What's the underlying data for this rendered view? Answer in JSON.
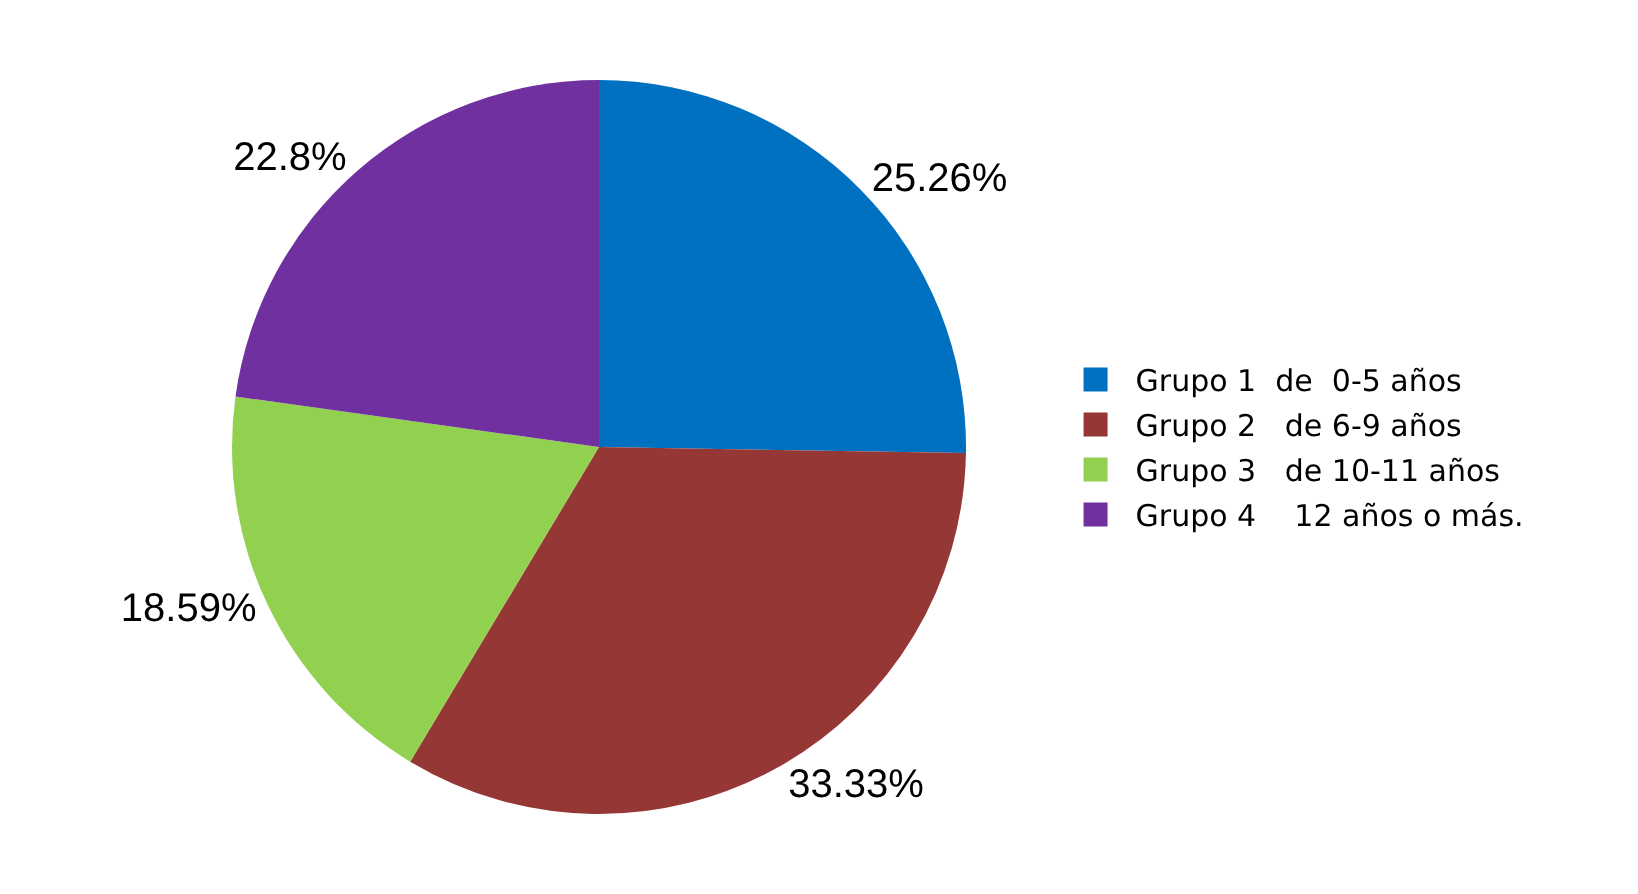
{
  "chart_data": {
    "type": "pie",
    "categories": [
      "Grupo 1  de  0-5 años",
      "Grupo 2   de 6-9 años",
      "Grupo 3   de 10-11 años",
      "Grupo 4    12 años o más."
    ],
    "values": [
      25.26,
      33.33,
      18.59,
      22.8
    ],
    "colors": [
      "#0070c0",
      "#953735",
      "#92d050",
      "#7030a0"
    ],
    "value_labels": [
      "25.26%",
      "33.33%",
      "18.59%",
      "22.8%"
    ],
    "legend": "right"
  }
}
